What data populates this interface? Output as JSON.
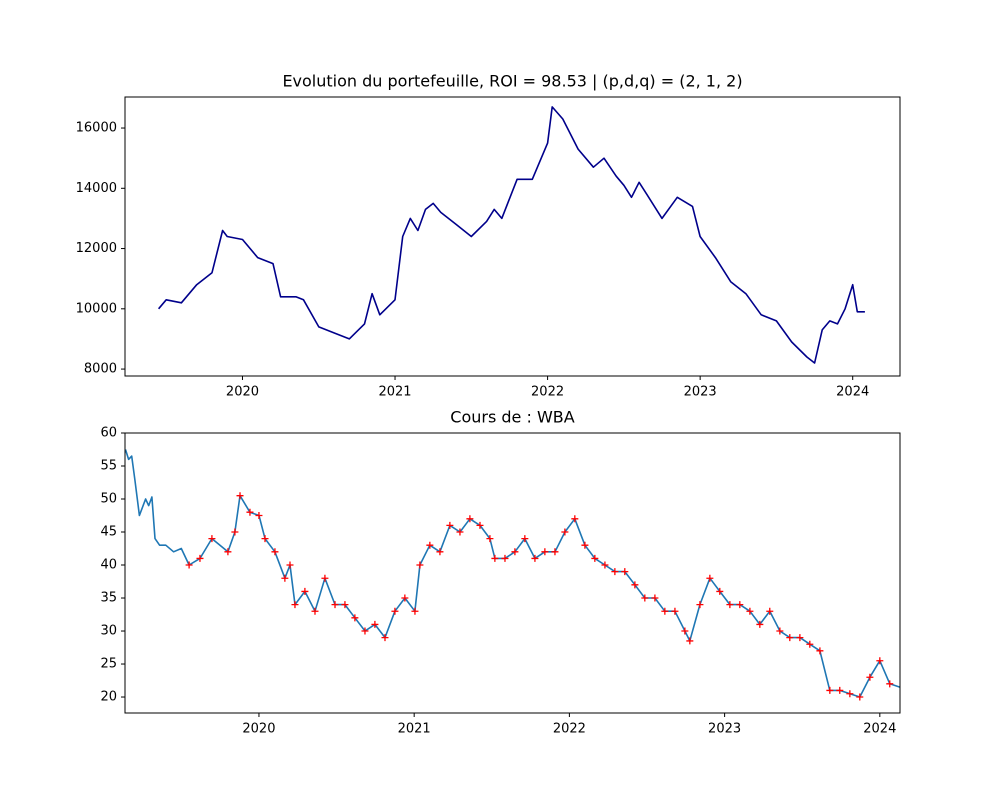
{
  "chart_data": [
    {
      "type": "line",
      "title": "Evolution du portefeuille, ROI = 98.53  |  (p,d,q) = (2, 1, 2)",
      "x": [
        2019.45,
        2019.5,
        2019.6,
        2019.7,
        2019.8,
        2019.87,
        2019.9,
        2020.0,
        2020.1,
        2020.2,
        2020.25,
        2020.3,
        2020.35,
        2020.4,
        2020.5,
        2020.6,
        2020.7,
        2020.8,
        2020.85,
        2020.9,
        2021.0,
        2021.05,
        2021.1,
        2021.15,
        2021.2,
        2021.25,
        2021.3,
        2021.4,
        2021.5,
        2021.6,
        2021.65,
        2021.7,
        2021.8,
        2021.9,
        2022.0,
        2022.03,
        2022.1,
        2022.2,
        2022.3,
        2022.37,
        2022.45,
        2022.5,
        2022.55,
        2022.6,
        2022.65,
        2022.75,
        2022.85,
        2022.95,
        2023.0,
        2023.1,
        2023.2,
        2023.3,
        2023.4,
        2023.5,
        2023.6,
        2023.7,
        2023.75,
        2023.8,
        2023.85,
        2023.9,
        2023.95,
        2024.0,
        2024.03,
        2024.08
      ],
      "series": [
        {
          "color": "#00008b",
          "values": [
            10000,
            10300,
            10200,
            10800,
            11200,
            12600,
            12400,
            12300,
            11700,
            11500,
            10400,
            10400,
            10400,
            10300,
            9400,
            9200,
            9000,
            9500,
            10500,
            9800,
            10300,
            12400,
            13000,
            12600,
            13300,
            13500,
            13200,
            12800,
            12400,
            12900,
            13300,
            13000,
            14300,
            14300,
            15500,
            16700,
            16300,
            15300,
            14700,
            15000,
            14400,
            14100,
            13700,
            14200,
            13800,
            13000,
            13700,
            13400,
            12400,
            11700,
            10900,
            10500,
            9800,
            9600,
            8900,
            8400,
            8200,
            9300,
            9600,
            9500,
            10000,
            10800,
            9900,
            9900
          ]
        }
      ],
      "xlim": [
        2019.23,
        2024.31
      ],
      "ylim": [
        7770,
        17030
      ],
      "xticks": [
        2020,
        2021,
        2022,
        2023,
        2024
      ],
      "yticks": [
        8000,
        10000,
        12000,
        14000,
        16000
      ]
    },
    {
      "type": "line",
      "title": "Cours de : WBA",
      "series": [
        {
          "color": "#1f77b4",
          "x": [
            2019.14,
            2019.16,
            2019.18,
            2019.2,
            2019.23,
            2019.27,
            2019.29,
            2019.31,
            2019.33,
            2019.36,
            2019.4,
            2019.45,
            2019.5,
            2019.55,
            2019.62,
            2019.697,
            2019.8,
            2019.845,
            2019.878,
            2019.942,
            2020.0,
            2020.039,
            2020.103,
            2020.167,
            2020.2,
            2020.232,
            2020.296,
            2020.361,
            2020.425,
            2020.49,
            2020.554,
            2020.618,
            2020.683,
            2020.747,
            2020.812,
            2020.876,
            2020.94,
            2021.005,
            2021.037,
            2021.101,
            2021.166,
            2021.23,
            2021.295,
            2021.359,
            2021.424,
            2021.488,
            2021.52,
            2021.585,
            2021.649,
            2021.713,
            2021.778,
            2021.842,
            2021.907,
            2021.971,
            2022.035,
            2022.1,
            2022.164,
            2022.229,
            2022.293,
            2022.357,
            2022.422,
            2022.486,
            2022.551,
            2022.615,
            2022.68,
            2022.744,
            2022.776,
            2022.841,
            2022.905,
            2022.969,
            2023.034,
            2023.098,
            2023.163,
            2023.227,
            2023.291,
            2023.356,
            2023.42,
            2023.485,
            2023.549,
            2023.614,
            2023.678,
            2023.742,
            2023.807,
            2023.871,
            2023.936,
            2024.0,
            2024.064,
            2024.129
          ],
          "values": [
            57.5,
            56,
            56.5,
            53,
            47.5,
            50,
            49,
            50.3,
            44,
            43,
            43,
            42,
            42.5,
            40,
            41,
            44,
            42,
            45,
            50.5,
            48,
            47.5,
            44,
            42,
            38,
            40,
            34,
            36,
            33,
            38,
            34,
            34,
            32,
            30,
            31,
            29,
            33,
            35,
            33,
            40,
            43,
            42,
            46,
            45,
            47,
            46,
            44,
            41,
            41,
            42,
            44,
            41,
            42,
            42,
            45,
            47,
            43,
            41,
            40,
            39,
            39,
            37,
            35,
            35,
            33,
            33,
            30,
            28.5,
            34,
            38,
            36,
            34,
            34,
            33,
            31,
            33,
            30,
            29,
            29,
            28,
            27,
            21,
            21,
            20.5,
            20,
            23,
            25.5,
            22,
            21.5
          ]
        },
        {
          "color": "#ff0000",
          "marker": "+",
          "x": [
            2019.55,
            2019.62,
            2019.697,
            2019.8,
            2019.845,
            2019.878,
            2019.942,
            2020.0,
            2020.039,
            2020.103,
            2020.167,
            2020.2,
            2020.232,
            2020.296,
            2020.361,
            2020.425,
            2020.49,
            2020.554,
            2020.618,
            2020.683,
            2020.747,
            2020.812,
            2020.876,
            2020.94,
            2021.005,
            2021.037,
            2021.101,
            2021.166,
            2021.23,
            2021.295,
            2021.359,
            2021.424,
            2021.488,
            2021.52,
            2021.585,
            2021.649,
            2021.713,
            2021.778,
            2021.842,
            2021.907,
            2021.971,
            2022.035,
            2022.1,
            2022.164,
            2022.229,
            2022.293,
            2022.357,
            2022.422,
            2022.486,
            2022.551,
            2022.615,
            2022.68,
            2022.744,
            2022.776,
            2022.841,
            2022.905,
            2022.969,
            2023.034,
            2023.098,
            2023.163,
            2023.227,
            2023.291,
            2023.356,
            2023.42,
            2023.485,
            2023.549,
            2023.614,
            2023.678,
            2023.742,
            2023.807,
            2023.871,
            2023.936,
            2024.0,
            2024.064
          ],
          "values": [
            40,
            41,
            44,
            42,
            45,
            50.5,
            48,
            47.5,
            44,
            42,
            38,
            40,
            34,
            36,
            33,
            38,
            34,
            34,
            32,
            30,
            31,
            29,
            33,
            35,
            33,
            40,
            43,
            42,
            46,
            45,
            47,
            46,
            44,
            41,
            41,
            42,
            44,
            41,
            42,
            42,
            45,
            47,
            43,
            41,
            40,
            39,
            39,
            37,
            35,
            35,
            33,
            33,
            30,
            28.5,
            34,
            38,
            36,
            34,
            34,
            33,
            31,
            33,
            30,
            29,
            29,
            28,
            27,
            21,
            21,
            20.5,
            20,
            23,
            25.5,
            22
          ]
        }
      ],
      "xlim": [
        2019.137,
        2024.13
      ],
      "ylim": [
        17.58,
        60
      ],
      "xticks": [
        2020,
        2021,
        2022,
        2023,
        2024
      ],
      "yticks": [
        20,
        25,
        30,
        35,
        40,
        45,
        50,
        55,
        60
      ]
    }
  ]
}
